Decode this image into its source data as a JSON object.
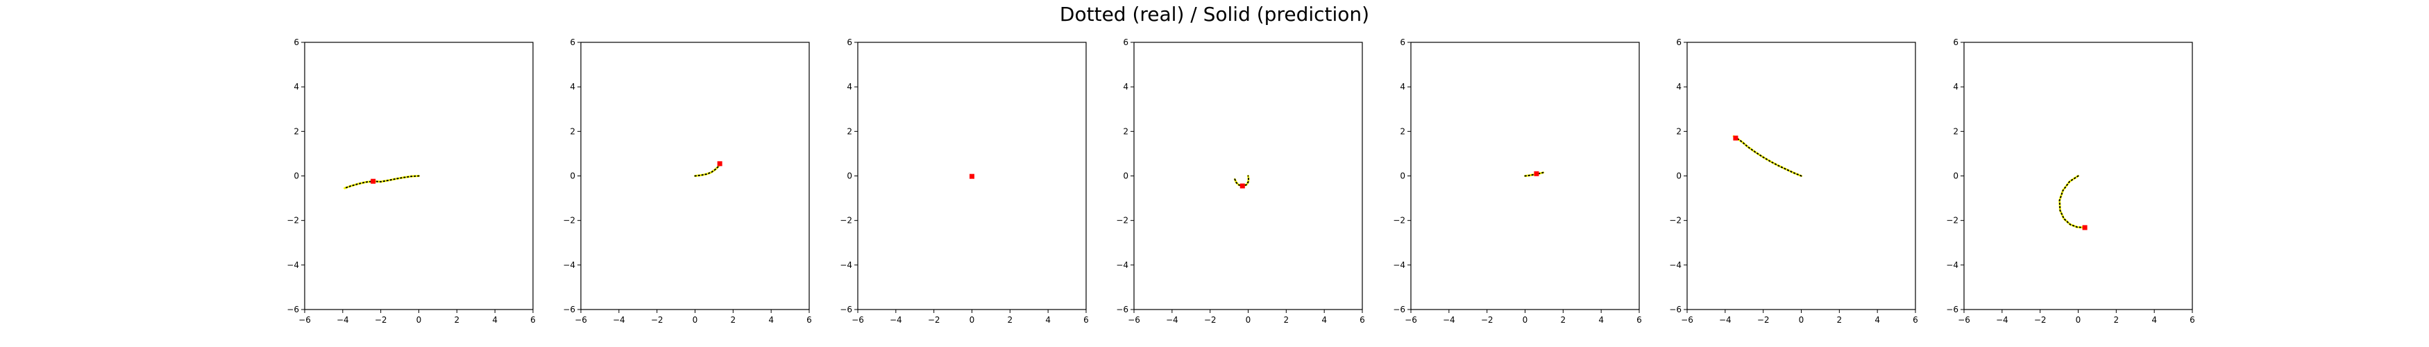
{
  "figure": {
    "title": "Dotted (real) / Solid (prediction)"
  },
  "colors": {
    "real": "#000000",
    "prediction": "#ffff00",
    "start_marker": "#ff0000",
    "axes": "#000000"
  },
  "chart_data": [
    {
      "type": "line",
      "xlim": [
        -6,
        6
      ],
      "ylim": [
        -6,
        6
      ],
      "grid": false,
      "xticks": [
        -6,
        -4,
        -2,
        0,
        2,
        4,
        6
      ],
      "yticks": [
        -6,
        -4,
        -2,
        0,
        2,
        4,
        6
      ],
      "series": [
        {
          "role": "real",
          "points": [
            [
              0,
              0
            ],
            [
              -0.4,
              -0.02
            ],
            [
              -0.8,
              -0.07
            ],
            [
              -1.2,
              -0.13
            ],
            [
              -1.6,
              -0.2
            ],
            [
              -2.0,
              -0.26
            ],
            [
              -2.4,
              -0.24
            ],
            [
              -2.8,
              -0.28
            ],
            [
              -3.2,
              -0.36
            ],
            [
              -3.6,
              -0.46
            ],
            [
              -3.9,
              -0.55
            ]
          ]
        },
        {
          "role": "prediction",
          "points": [
            [
              0,
              0
            ],
            [
              -0.4,
              -0.02
            ],
            [
              -0.8,
              -0.07
            ],
            [
              -1.2,
              -0.13
            ],
            [
              -1.6,
              -0.2
            ],
            [
              -2.0,
              -0.26
            ],
            [
              -2.4,
              -0.24
            ],
            [
              -2.8,
              -0.28
            ],
            [
              -3.2,
              -0.36
            ],
            [
              -3.6,
              -0.46
            ],
            [
              -3.9,
              -0.55
            ]
          ]
        }
      ],
      "start": [
        -2.4,
        -0.24
      ]
    },
    {
      "type": "line",
      "xlim": [
        -6,
        6
      ],
      "ylim": [
        -6,
        6
      ],
      "grid": false,
      "xticks": [
        -6,
        -4,
        -2,
        0,
        2,
        4,
        6
      ],
      "yticks": [
        -6,
        -4,
        -2,
        0,
        2,
        4,
        6
      ],
      "series": [
        {
          "role": "real",
          "points": [
            [
              0,
              0
            ],
            [
              0.3,
              0.03
            ],
            [
              0.6,
              0.08
            ],
            [
              0.85,
              0.16
            ],
            [
              1.05,
              0.28
            ],
            [
              1.2,
              0.4
            ],
            [
              1.3,
              0.5
            ]
          ]
        },
        {
          "role": "prediction",
          "points": [
            [
              0,
              0
            ],
            [
              0.3,
              0.03
            ],
            [
              0.6,
              0.08
            ],
            [
              0.85,
              0.16
            ],
            [
              1.05,
              0.28
            ],
            [
              1.2,
              0.4
            ],
            [
              1.3,
              0.5
            ]
          ]
        }
      ],
      "start": [
        1.3,
        0.55
      ]
    },
    {
      "type": "line",
      "xlim": [
        -6,
        6
      ],
      "ylim": [
        -6,
        6
      ],
      "grid": false,
      "xticks": [
        -6,
        -4,
        -2,
        0,
        2,
        4,
        6
      ],
      "yticks": [
        -6,
        -4,
        -2,
        0,
        2,
        4,
        6
      ],
      "series": [
        {
          "role": "real",
          "points": [
            [
              0,
              0
            ],
            [
              0.02,
              -0.02
            ]
          ]
        },
        {
          "role": "prediction",
          "points": [
            [
              0,
              0
            ],
            [
              0.02,
              -0.02
            ]
          ]
        }
      ],
      "start": [
        0.0,
        -0.02
      ]
    },
    {
      "type": "line",
      "xlim": [
        -6,
        6
      ],
      "ylim": [
        -6,
        6
      ],
      "grid": false,
      "xticks": [
        -6,
        -4,
        -2,
        0,
        2,
        4,
        6
      ],
      "yticks": [
        -6,
        -4,
        -2,
        0,
        2,
        4,
        6
      ],
      "series": [
        {
          "role": "real",
          "points": [
            [
              -0.7,
              -0.15
            ],
            [
              -0.62,
              -0.3
            ],
            [
              -0.5,
              -0.4
            ],
            [
              -0.3,
              -0.45
            ],
            [
              -0.1,
              -0.4
            ],
            [
              0.0,
              -0.28
            ],
            [
              0.02,
              -0.14
            ],
            [
              0.0,
              0.0
            ]
          ]
        },
        {
          "role": "prediction",
          "points": [
            [
              -0.7,
              -0.15
            ],
            [
              -0.62,
              -0.3
            ],
            [
              -0.5,
              -0.4
            ],
            [
              -0.3,
              -0.45
            ],
            [
              -0.1,
              -0.4
            ],
            [
              0.0,
              -0.28
            ],
            [
              0.02,
              -0.14
            ],
            [
              0.0,
              0.0
            ]
          ]
        }
      ],
      "start": [
        -0.3,
        -0.45
      ]
    },
    {
      "type": "line",
      "xlim": [
        -6,
        6
      ],
      "ylim": [
        -6,
        6
      ],
      "grid": false,
      "xticks": [
        -6,
        -4,
        -2,
        0,
        2,
        4,
        6
      ],
      "yticks": [
        -6,
        -4,
        -2,
        0,
        2,
        4,
        6
      ],
      "series": [
        {
          "role": "real",
          "points": [
            [
              0,
              0
            ],
            [
              0.2,
              0.02
            ],
            [
              0.4,
              0.05
            ],
            [
              0.6,
              0.08
            ],
            [
              0.8,
              0.12
            ],
            [
              0.95,
              0.15
            ]
          ]
        },
        {
          "role": "prediction",
          "points": [
            [
              0,
              0
            ],
            [
              0.2,
              0.02
            ],
            [
              0.4,
              0.05
            ],
            [
              0.6,
              0.08
            ],
            [
              0.8,
              0.12
            ],
            [
              0.95,
              0.15
            ]
          ]
        }
      ],
      "start": [
        0.6,
        0.1
      ]
    },
    {
      "type": "line",
      "xlim": [
        -6,
        6
      ],
      "ylim": [
        -6,
        6
      ],
      "grid": false,
      "xticks": [
        -6,
        -4,
        -2,
        0,
        2,
        4,
        6
      ],
      "yticks": [
        -6,
        -4,
        -2,
        0,
        2,
        4,
        6
      ],
      "series": [
        {
          "role": "real",
          "points": [
            [
              0,
              0
            ],
            [
              -0.4,
              0.14
            ],
            [
              -0.8,
              0.3
            ],
            [
              -1.2,
              0.46
            ],
            [
              -1.6,
              0.64
            ],
            [
              -2.0,
              0.84
            ],
            [
              -2.4,
              1.06
            ],
            [
              -2.8,
              1.3
            ],
            [
              -3.1,
              1.52
            ],
            [
              -3.4,
              1.7
            ],
            [
              -3.55,
              1.78
            ]
          ]
        },
        {
          "role": "prediction",
          "points": [
            [
              0,
              0
            ],
            [
              -0.4,
              0.14
            ],
            [
              -0.8,
              0.3
            ],
            [
              -1.2,
              0.46
            ],
            [
              -1.6,
              0.64
            ],
            [
              -2.0,
              0.84
            ],
            [
              -2.4,
              1.06
            ],
            [
              -2.8,
              1.3
            ],
            [
              -3.1,
              1.52
            ],
            [
              -3.4,
              1.7
            ],
            [
              -3.55,
              1.78
            ]
          ]
        }
      ],
      "start": [
        -3.45,
        1.7
      ]
    },
    {
      "type": "line",
      "xlim": [
        -6,
        6
      ],
      "ylim": [
        -6,
        6
      ],
      "grid": false,
      "xticks": [
        -6,
        -4,
        -2,
        0,
        2,
        4,
        6
      ],
      "yticks": [
        -6,
        -4,
        -2,
        0,
        2,
        4,
        6
      ],
      "series": [
        {
          "role": "real",
          "points": [
            [
              0,
              0
            ],
            [
              -0.45,
              -0.25
            ],
            [
              -0.8,
              -0.65
            ],
            [
              -0.98,
              -1.1
            ],
            [
              -0.95,
              -1.55
            ],
            [
              -0.75,
              -1.92
            ],
            [
              -0.42,
              -2.18
            ],
            [
              -0.05,
              -2.3
            ],
            [
              0.35,
              -2.32
            ]
          ]
        },
        {
          "role": "prediction",
          "points": [
            [
              0,
              0
            ],
            [
              -0.45,
              -0.25
            ],
            [
              -0.8,
              -0.65
            ],
            [
              -0.98,
              -1.1
            ],
            [
              -0.95,
              -1.55
            ],
            [
              -0.75,
              -1.92
            ],
            [
              -0.42,
              -2.18
            ],
            [
              -0.05,
              -2.3
            ],
            [
              0.35,
              -2.32
            ]
          ]
        }
      ],
      "start": [
        0.35,
        -2.32
      ]
    }
  ]
}
